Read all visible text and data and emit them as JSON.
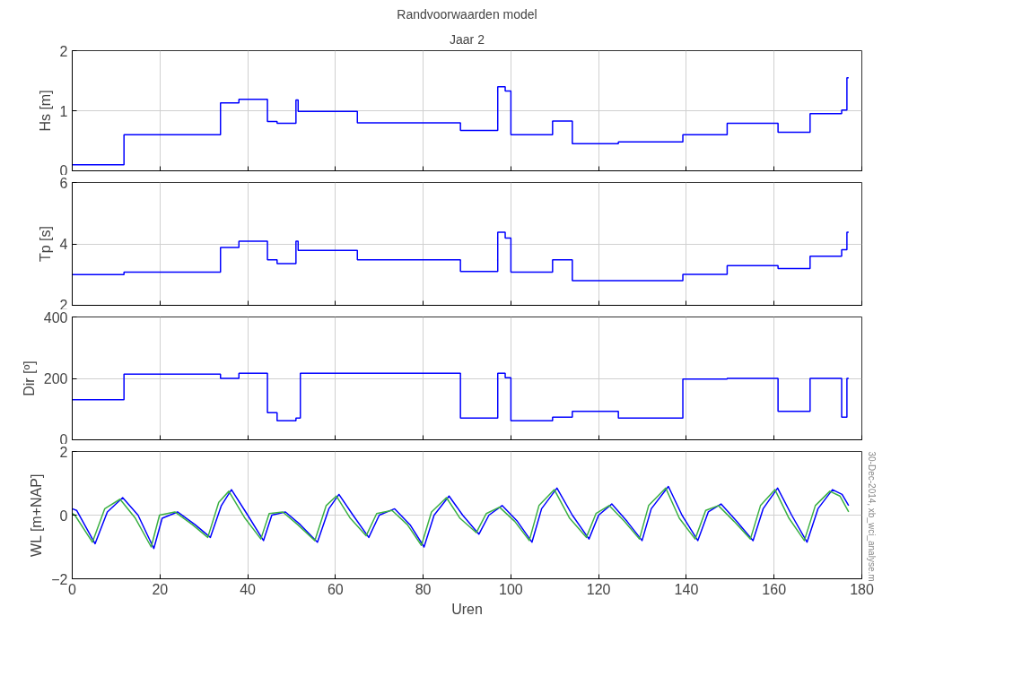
{
  "chart_data": [
    {
      "type": "step",
      "title": "Randvoorwaarden model",
      "subtitle": "Jaar 2",
      "ylabel": "Hs [m]",
      "xlim": [
        0,
        180
      ],
      "xticks": [
        0,
        20,
        40,
        60,
        80,
        100,
        120,
        140,
        160,
        180
      ],
      "ylim": [
        0,
        2
      ],
      "yticks": [
        0,
        1,
        2
      ],
      "grid": true,
      "tick_labels": "y",
      "series": [
        {
          "color": "#0000ff",
          "x": [
            0,
            11.8,
            33.8,
            38,
            44.5,
            46.7,
            51,
            51.5,
            65,
            88.5,
            97,
            98.7,
            100,
            109.5,
            114,
            124.5,
            139.2,
            149.3,
            160.9,
            168.2,
            175.4,
            176.6,
            177
          ],
          "values": [
            0.1,
            0.6,
            1.13,
            1.19,
            0.82,
            0.79,
            1.18,
            0.99,
            0.8,
            0.67,
            1.4,
            1.33,
            0.6,
            0.83,
            0.45,
            0.48,
            0.6,
            0.79,
            0.64,
            0.95,
            1.01,
            1.55,
            1.55
          ]
        }
      ]
    },
    {
      "type": "step",
      "ylabel": "Tp [s]",
      "xlim": [
        0,
        180
      ],
      "xticks": [
        0,
        20,
        40,
        60,
        80,
        100,
        120,
        140,
        160,
        180
      ],
      "ylim": [
        2,
        6
      ],
      "yticks": [
        2,
        4,
        6
      ],
      "grid": true,
      "tick_labels": "y",
      "series": [
        {
          "color": "#0000ff",
          "x": [
            0,
            11.8,
            33.8,
            38,
            44.5,
            46.7,
            51,
            51.5,
            65,
            88.5,
            97,
            98.7,
            100,
            109.5,
            114,
            139.2,
            149.3,
            160.9,
            168.2,
            175.4,
            176.6,
            177
          ],
          "values": [
            3.0,
            3.08,
            3.88,
            4.09,
            3.48,
            3.36,
            4.09,
            3.79,
            3.48,
            3.1,
            4.38,
            4.19,
            3.08,
            3.48,
            2.8,
            3.01,
            3.29,
            3.2,
            3.6,
            3.81,
            4.38,
            4.38
          ]
        }
      ]
    },
    {
      "type": "step",
      "ylabel": "Dir [º]",
      "xlim": [
        0,
        180
      ],
      "xticks": [
        0,
        20,
        40,
        60,
        80,
        100,
        120,
        140,
        160,
        180
      ],
      "ylim": [
        0,
        400
      ],
      "yticks": [
        0,
        200,
        400
      ],
      "grid": true,
      "tick_labels": "y",
      "series": [
        {
          "color": "#0000ff",
          "x": [
            0,
            11.8,
            33.8,
            38,
            44.5,
            46.7,
            51,
            52,
            88.5,
            97,
            98.7,
            100,
            109.5,
            114,
            124.5,
            139.2,
            149.3,
            160.9,
            168.2,
            175.4,
            176.6,
            177
          ],
          "values": [
            131,
            214,
            200,
            217,
            88,
            62,
            71,
            217,
            71,
            217,
            202,
            62,
            74,
            93,
            71,
            198,
            200,
            93,
            200,
            74,
            200,
            200
          ]
        }
      ]
    },
    {
      "type": "line",
      "xlabel": "Uren",
      "ylabel": "WL [m+NAP]",
      "xlim": [
        0,
        180
      ],
      "xticks": [
        0,
        20,
        40,
        60,
        80,
        100,
        120,
        140,
        160,
        180
      ],
      "ylim": [
        -2,
        2
      ],
      "yticks": [
        -2,
        0,
        2
      ],
      "grid": true,
      "annotations": [
        "30-Dec-2014, xb_wci_analyse.m"
      ],
      "series": [
        {
          "color": "#0000ff",
          "x": [
            0,
            1,
            5.2,
            8,
            11.5,
            15,
            18.6,
            20.5,
            24,
            28,
            31.5,
            34,
            36.3,
            40,
            43.6,
            45.5,
            48.6,
            52,
            55.9,
            58.5,
            60.8,
            64,
            67.6,
            70,
            73.5,
            77,
            80.2,
            82.5,
            85.9,
            89,
            92.7,
            95,
            98,
            101.5,
            104.8,
            107,
            110.5,
            114,
            117.8,
            120,
            123,
            126.5,
            129.9,
            132,
            135.9,
            139,
            142.6,
            145,
            147.9,
            151.5,
            155.2,
            157.5,
            160.8,
            164,
            167.5,
            170,
            173.3,
            175.5,
            177
          ],
          "values": [
            0.2,
            0.15,
            -0.9,
            0.1,
            0.55,
            0,
            -1.05,
            -0.1,
            0.1,
            -0.3,
            -0.7,
            0.3,
            0.8,
            0,
            -0.8,
            0,
            0.1,
            -0.3,
            -0.85,
            0.2,
            0.65,
            0,
            -0.7,
            0,
            0.2,
            -0.3,
            -1.0,
            0,
            0.6,
            0,
            -0.6,
            0,
            0.3,
            -0.2,
            -0.85,
            0.2,
            0.85,
            0,
            -0.75,
            0,
            0.35,
            -0.2,
            -0.8,
            0.2,
            0.9,
            0,
            -0.8,
            0.1,
            0.35,
            -0.2,
            -0.8,
            0.2,
            0.85,
            0,
            -0.85,
            0.2,
            0.8,
            0.65,
            0.3
          ]
        },
        {
          "color": "#3cb043",
          "x": [
            0,
            0.6,
            4.6,
            7.4,
            10.9,
            14.4,
            18,
            19.9,
            23.4,
            27.4,
            30.9,
            33.4,
            35.7,
            39.4,
            43,
            44.9,
            48,
            51.4,
            55.3,
            57.9,
            60.2,
            63.4,
            67,
            69.4,
            72.9,
            76.4,
            79.6,
            81.9,
            85.3,
            88.4,
            92.1,
            94.4,
            97.4,
            100.9,
            104.2,
            106.4,
            109.9,
            113.4,
            117.2,
            119.4,
            122.4,
            125.9,
            129.3,
            131.4,
            135.3,
            138.4,
            142,
            144.4,
            147.3,
            150.9,
            154.6,
            156.9,
            160.2,
            163.4,
            166.9,
            169.4,
            172.7,
            175,
            177
          ],
          "values": [
            0.05,
            0,
            -0.85,
            0.2,
            0.5,
            -0.1,
            -1.0,
            0,
            0.1,
            -0.3,
            -0.7,
            0.4,
            0.75,
            -0.1,
            -0.75,
            0.05,
            0.1,
            -0.3,
            -0.8,
            0.3,
            0.6,
            -0.1,
            -0.65,
            0.05,
            0.15,
            -0.3,
            -0.95,
            0.1,
            0.55,
            -0.1,
            -0.55,
            0.05,
            0.25,
            -0.2,
            -0.8,
            0.3,
            0.8,
            -0.1,
            -0.7,
            0.05,
            0.3,
            -0.2,
            -0.75,
            0.3,
            0.85,
            -0.1,
            -0.75,
            0.15,
            0.3,
            -0.2,
            -0.75,
            0.3,
            0.8,
            -0.1,
            -0.8,
            0.3,
            0.75,
            0.6,
            0.1
          ]
        }
      ]
    }
  ]
}
